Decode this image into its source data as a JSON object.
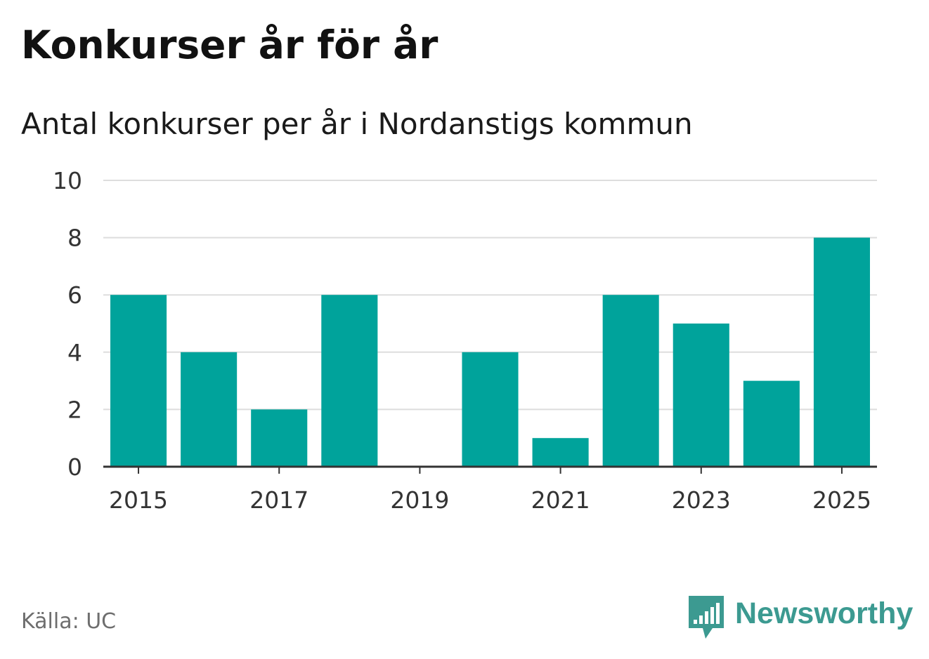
{
  "header": {
    "title": "Konkurser år för år",
    "subtitle": "Antal konkurser per år i Nordanstigs kommun"
  },
  "footer": {
    "source": "Källa: UC",
    "brand": "Newsworthy"
  },
  "colors": {
    "bar": "#00a39b",
    "grid": "#dddddd",
    "axis": "#333333",
    "brand": "#3c9a91"
  },
  "icons": {
    "brand": "newsworthy-logo-icon"
  },
  "chart_data": {
    "type": "bar",
    "categories": [
      2015,
      2016,
      2017,
      2018,
      2019,
      2020,
      2021,
      2022,
      2023,
      2024,
      2025
    ],
    "values": [
      6,
      4,
      2,
      6,
      0,
      4,
      1,
      6,
      5,
      3,
      8
    ],
    "xtick_labels": [
      "2015",
      "2017",
      "2019",
      "2021",
      "2023",
      "2025"
    ],
    "ytick_labels": [
      "0",
      "2",
      "4",
      "6",
      "8",
      "10"
    ],
    "ylim": [
      0,
      10
    ],
    "grid": true,
    "legend": "none"
  }
}
